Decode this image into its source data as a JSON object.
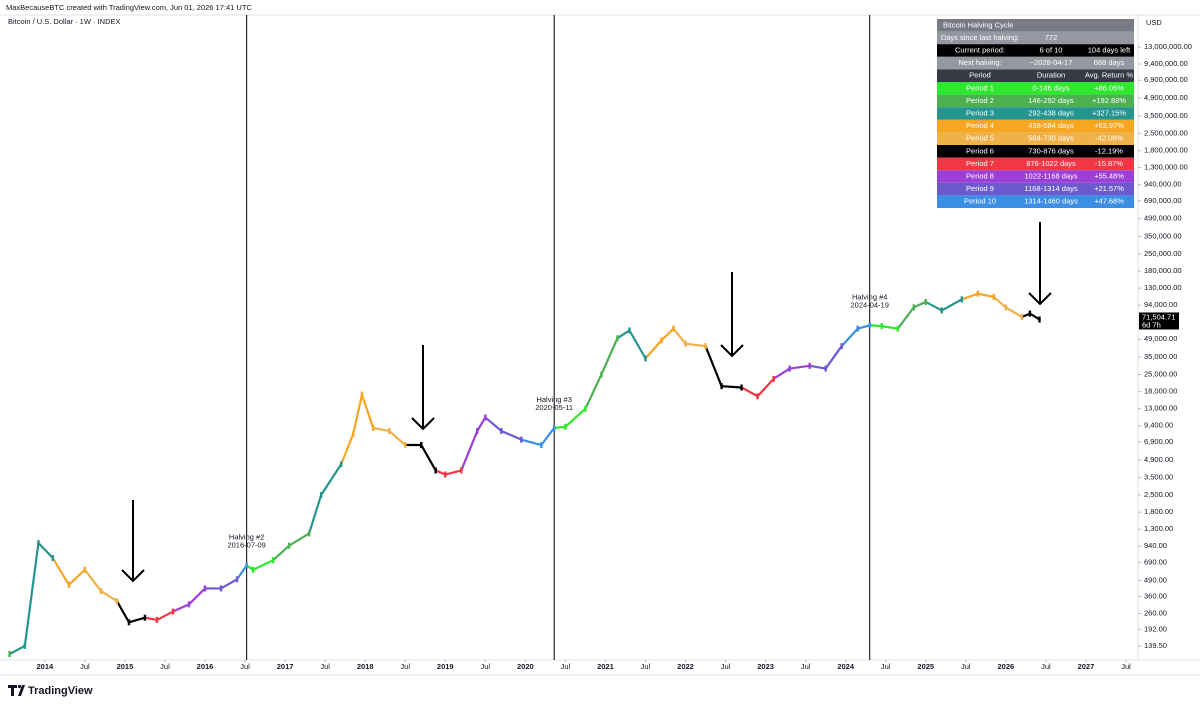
{
  "header": {
    "text": "MaxBecauseBTC created with TradingView.com, Jun 01, 2026 17:41 UTC"
  },
  "chart_data": {
    "type": "line",
    "title": "Bitcoin / U.S. Dollar · 1W · INDEX",
    "y_unit": "USD",
    "log_scale": true,
    "grid": false,
    "xlim": [
      2013.44,
      2027.65
    ],
    "ylim": [
      107,
      24000000
    ],
    "xticks": [
      2014,
      {
        "value": 2014.5,
        "label": "Jul"
      },
      2015,
      {
        "value": 2015.5,
        "label": "Jul"
      },
      2016,
      {
        "value": 2016.5,
        "label": "Jul"
      },
      2017,
      {
        "value": 2017.5,
        "label": "Jul"
      },
      2018,
      {
        "value": 2018.5,
        "label": "Jul"
      },
      2019,
      {
        "value": 2019.5,
        "label": "Jul"
      },
      2020,
      {
        "value": 2020.5,
        "label": "Jul"
      },
      2021,
      {
        "value": 2021.5,
        "label": "Jul"
      },
      2022,
      {
        "value": 2022.5,
        "label": "Jul"
      },
      2023,
      {
        "value": 2023.5,
        "label": "Jul"
      },
      2024,
      {
        "value": 2024.5,
        "label": "Jul"
      },
      2025,
      {
        "value": 2025.5,
        "label": "Jul"
      },
      2026,
      {
        "value": 2026.5,
        "label": "Jul"
      },
      2027,
      {
        "value": 2027.5,
        "label": "Jul"
      }
    ],
    "yticks": [
      {
        "value": 13000000,
        "label": "13,000,000.00"
      },
      {
        "value": 9400000,
        "label": "9,400,000.00"
      },
      {
        "value": 6900000,
        "label": "6,900,000.00"
      },
      {
        "value": 4900000,
        "label": "4,900,000.00"
      },
      {
        "value": 3500000,
        "label": "3,500,000.00"
      },
      {
        "value": 2500000,
        "label": "2,500,000.00"
      },
      {
        "value": 1800000,
        "label": "1,800,000.00"
      },
      {
        "value": 1300000,
        "label": "1,300,000.00"
      },
      {
        "value": 940000,
        "label": "940,000.00"
      },
      {
        "value": 690000,
        "label": "690,000.00"
      },
      {
        "value": 490000,
        "label": "490,000.00"
      },
      {
        "value": 350000,
        "label": "350,000.00"
      },
      {
        "value": 250000,
        "label": "250,000.00"
      },
      {
        "value": 180000,
        "label": "180,000.00"
      },
      {
        "value": 130000,
        "label": "130,000.00"
      },
      {
        "value": 94000,
        "label": "94,000.00"
      },
      {
        "value": 49000,
        "label": "49,000.00"
      },
      {
        "value": 35000,
        "label": "35,000.00"
      },
      {
        "value": 25000,
        "label": "25,000.00"
      },
      {
        "value": 18000,
        "label": "18,000.00"
      },
      {
        "value": 13000,
        "label": "13,000.00"
      },
      {
        "value": 9400,
        "label": "9,400.00"
      },
      {
        "value": 6900,
        "label": "6,900.00"
      },
      {
        "value": 4900,
        "label": "4,900.00"
      },
      {
        "value": 3500,
        "label": "3,500.00"
      },
      {
        "value": 2500,
        "label": "2,500.00"
      },
      {
        "value": 1800,
        "label": "1,800.00"
      },
      {
        "value": 1300,
        "label": "1,300.00"
      },
      {
        "value": 940,
        "label": "940.00"
      },
      {
        "value": 690,
        "label": "690.00"
      },
      {
        "value": 490,
        "label": "490.00"
      },
      {
        "value": 360,
        "label": "360.00"
      },
      {
        "value": 260,
        "label": "260.00"
      },
      {
        "value": 192,
        "label": "192.00"
      },
      {
        "value": 139.5,
        "label": "139.50"
      }
    ],
    "x": [
      2013.56,
      2013.75,
      2013.92,
      2014.1,
      2014.3,
      2014.5,
      2014.7,
      2014.9,
      2015.05,
      2015.25,
      2015.4,
      2015.6,
      2015.8,
      2016.0,
      2016.2,
      2016.4,
      2016.52,
      2016.6,
      2016.85,
      2017.05,
      2017.3,
      2017.45,
      2017.7,
      2017.85,
      2017.96,
      2018.1,
      2018.3,
      2018.5,
      2018.7,
      2018.88,
      2019.0,
      2019.2,
      2019.4,
      2019.5,
      2019.7,
      2019.95,
      2020.2,
      2020.36,
      2020.5,
      2020.75,
      2020.95,
      2021.15,
      2021.3,
      2021.5,
      2021.7,
      2021.85,
      2022.0,
      2022.25,
      2022.45,
      2022.7,
      2022.9,
      2023.1,
      2023.3,
      2023.55,
      2023.75,
      2023.95,
      2024.15,
      2024.3,
      2024.45,
      2024.65,
      2024.85,
      2025.0,
      2025.2,
      2025.45,
      2025.65,
      2025.85,
      2026.0,
      2026.2,
      2026.3,
      2026.42
    ],
    "values": [
      120,
      140,
      1000,
      750,
      450,
      600,
      400,
      330,
      220,
      240,
      230,
      270,
      310,
      420,
      420,
      500,
      650,
      600,
      720,
      950,
      1200,
      2500,
      4500,
      8000,
      17000,
      9000,
      8500,
      6500,
      6500,
      4000,
      3700,
      4000,
      8500,
      11000,
      8500,
      7200,
      6500,
      9000,
      9200,
      13000,
      25000,
      50000,
      58000,
      34000,
      48000,
      60000,
      45000,
      43000,
      20000,
      19500,
      16500,
      23000,
      28000,
      29500,
      28000,
      43000,
      60000,
      64000,
      63000,
      60000,
      90000,
      100000,
      85000,
      105000,
      117000,
      110000,
      90000,
      75000,
      80000,
      71504.71
    ],
    "colors": [
      "#4caf50",
      "#26958f",
      "#26958f",
      "#26958f",
      "#f5a623",
      "#f5a623",
      "#f0b04a",
      "#f0b04a",
      "#000000",
      "#000000",
      "#f23645",
      "#f23645",
      "#9c3fd6",
      "#9c3fd6",
      "#6a5acd",
      "#6a5acd",
      "#3a8ee6",
      "#2ee82e",
      "#2ee82e",
      "#4caf50",
      "#4caf50",
      "#26958f",
      "#26958f",
      "#f5a623",
      "#f5a623",
      "#f5a623",
      "#f0b04a",
      "#f0b04a",
      "#000000",
      "#000000",
      "#f23645",
      "#f23645",
      "#9c3fd6",
      "#9c3fd6",
      "#6a5acd",
      "#6a5acd",
      "#3a8ee6",
      "#3a8ee6",
      "#2ee82e",
      "#2ee82e",
      "#4caf50",
      "#4caf50",
      "#26958f",
      "#26958f",
      "#f5a623",
      "#f5a623",
      "#f0b04a",
      "#f0b04a",
      "#000000",
      "#000000",
      "#f23645",
      "#f23645",
      "#9c3fd6",
      "#9c3fd6",
      "#6a5acd",
      "#6a5acd",
      "#3a8ee6",
      "#3a8ee6",
      "#2ee82e",
      "#2ee82e",
      "#4caf50",
      "#4caf50",
      "#26958f",
      "#26958f",
      "#f5a623",
      "#f5a623",
      "#f0b04a",
      "#f0b04a",
      "#000000",
      "#000000"
    ],
    "last_price_label": "71,504.71",
    "countdown": "6d 7h",
    "annotations": [
      {
        "x": 2016.52,
        "text": "Halving #2",
        "date": "2016-07-09"
      },
      {
        "x": 2020.36,
        "text": "Halving #3",
        "date": "2020-05-11"
      },
      {
        "x": 2024.3,
        "text": "Halving #4",
        "date": "2024-04-19"
      }
    ]
  },
  "table": {
    "title": "Bitcoin Halving Cycle",
    "info_rows": [
      [
        "Days since last halving:",
        "772"
      ],
      [
        "Current period:",
        "6 of 10",
        "104 days left"
      ],
      [
        "Next halving:",
        "~2028-04-17",
        "688 days"
      ]
    ],
    "info_colors": [
      "#9598a1",
      "#000000",
      "#9598a1"
    ],
    "columns": [
      "Period",
      "Duration",
      "Avg. Return %"
    ],
    "rows": [
      [
        "Period 1",
        "0-146 days",
        "+86.06%"
      ],
      [
        "Period 2",
        "146-292 days",
        "+192.88%"
      ],
      [
        "Period 3",
        "292-438 days",
        "+327.15%"
      ],
      [
        "Period 4",
        "438-584 days",
        "+63.97%"
      ],
      [
        "Period 5",
        "584-730 days",
        "-42.06%"
      ],
      [
        "Period 6",
        "730-876 days",
        "-12.19%"
      ],
      [
        "Period 7",
        "876-1022 days",
        "-15.87%"
      ],
      [
        "Period 8",
        "1022-1168 days",
        "+55.48%"
      ],
      [
        "Period 9",
        "1168-1314 days",
        "+21.57%"
      ],
      [
        "Period 10",
        "1314-1460 days",
        "+47.68%"
      ]
    ],
    "row_colors": [
      "#2ee82e",
      "#4caf50",
      "#26958f",
      "#f5a623",
      "#f0b04a",
      "#000000",
      "#f23645",
      "#9c3fd6",
      "#6a5acd",
      "#3a8ee6"
    ]
  },
  "footer": {
    "brand": "TradingView"
  }
}
